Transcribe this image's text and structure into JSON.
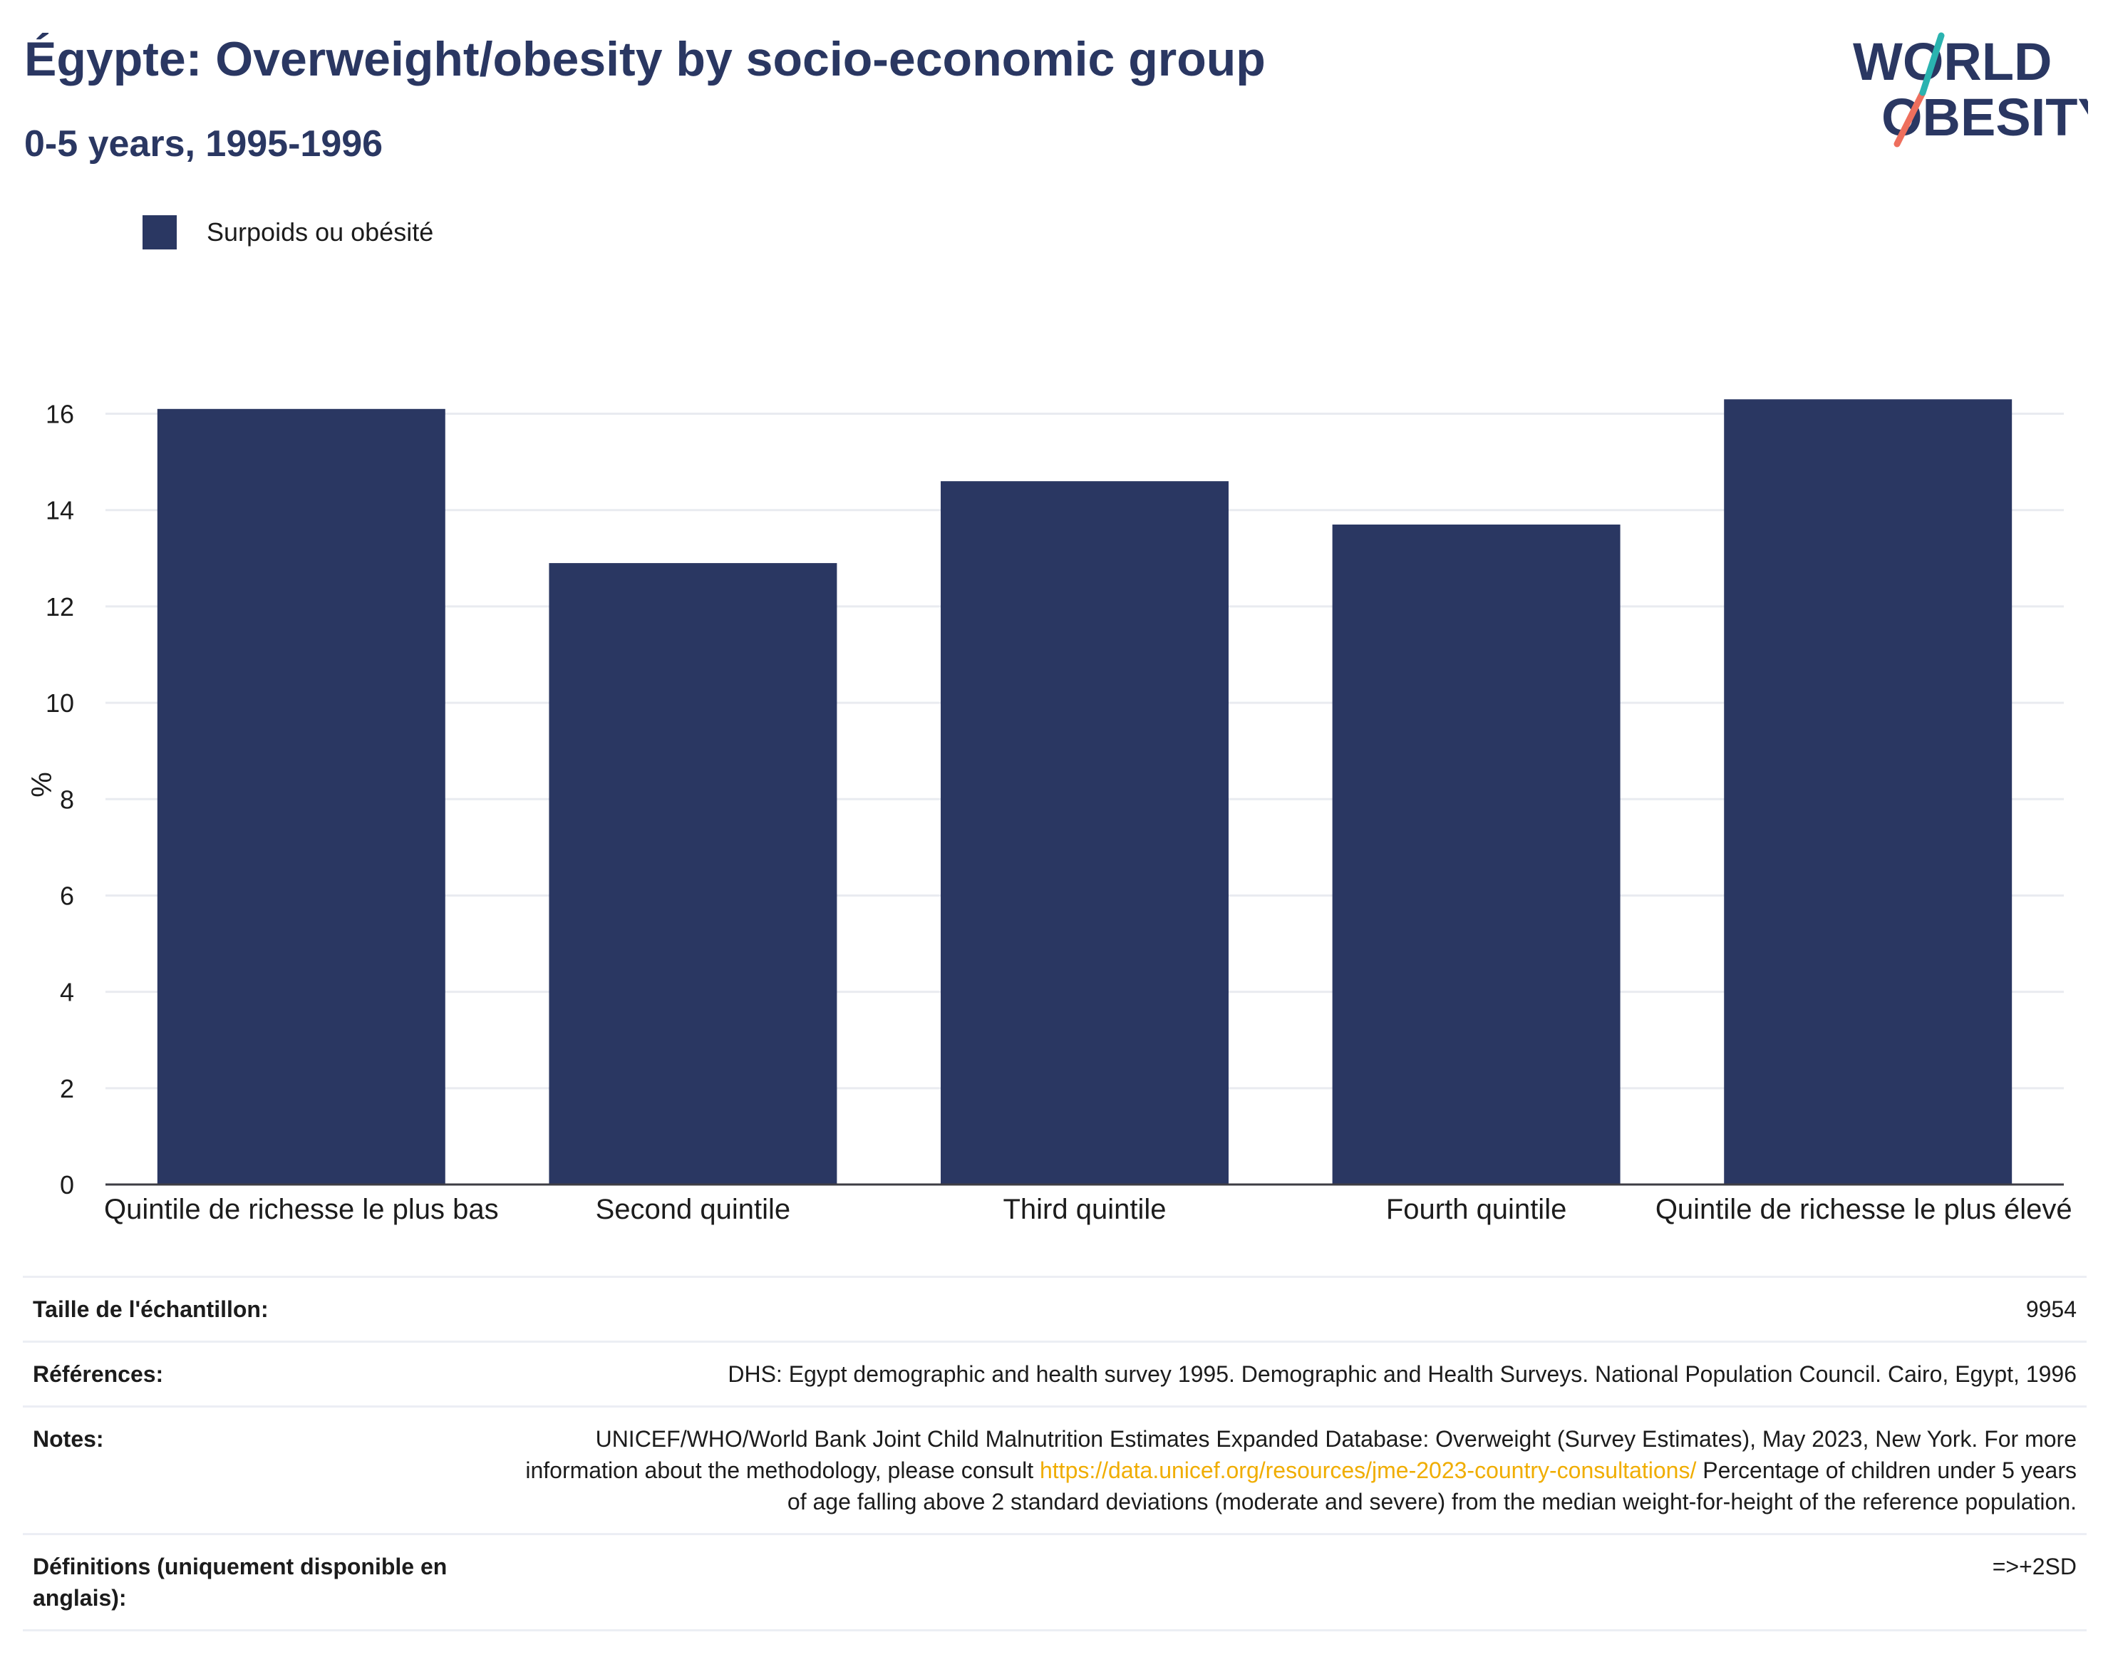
{
  "header": {
    "title": "Égypte: Overweight/obesity by socio-economic group",
    "subtitle": "0-5 years, 1995-1996"
  },
  "logo": {
    "line1": "WORLD",
    "line2": "OBESITY",
    "colors": {
      "text": "#2a3762",
      "slash_teal": "#2ab3b0",
      "slash_coral": "#ee6f5d"
    }
  },
  "legend": {
    "items": [
      {
        "label": "Surpoids ou obésité",
        "color": "#2a3762"
      }
    ]
  },
  "chart_data": {
    "type": "bar",
    "title": "Égypte: Overweight/obesity by socio-economic group",
    "subtitle": "0-5 years, 1995-1996",
    "xlabel": "",
    "ylabel": "%",
    "categories": [
      "Quintile de richesse le plus bas",
      "Second quintile",
      "Third quintile",
      "Fourth quintile",
      "Quintile de richesse le plus élevé"
    ],
    "series": [
      {
        "name": "Surpoids ou obésité",
        "color": "#2a3762",
        "values": [
          16.1,
          12.9,
          14.6,
          13.7,
          16.3
        ]
      }
    ],
    "ylim": [
      0,
      16.6
    ],
    "yticks": [
      0,
      2,
      4,
      6,
      8,
      10,
      12,
      14,
      16
    ],
    "grid": true,
    "legend_position": "top-left"
  },
  "meta": {
    "rows": [
      {
        "key": "Taille de l'échantillon:",
        "value": "9954"
      },
      {
        "key": "Références:",
        "value": "DHS: Egypt demographic and health survey 1995. Demographic and Health Surveys. National Population Council. Cairo, Egypt, 1996"
      },
      {
        "key": "Notes:",
        "value_before": "UNICEF/WHO/World Bank Joint Child Malnutrition Estimates Expanded Database: Overweight (Survey Estimates), May 2023, New York. For more information about the methodology, please consult ",
        "link": "https://data.unicef.org/resources/jme-2023-country-consultations/",
        "value_after": " Percentage of children under 5 years of age falling above 2 standard deviations (moderate and severe) from the median weight-for-height of the reference population."
      },
      {
        "key": "Définitions (uniquement disponible en anglais):",
        "value": "=>+2SD"
      }
    ]
  }
}
